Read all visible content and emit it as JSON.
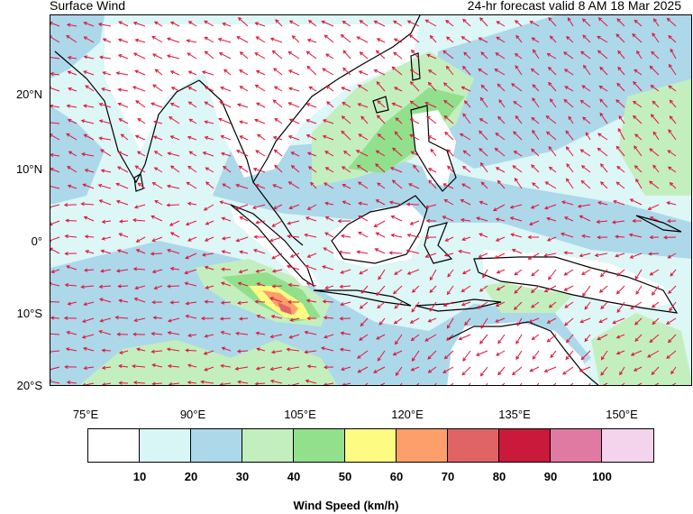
{
  "header": {
    "title_left": "Surface Wind",
    "title_right": "24-hr forecast valid 8 AM 18 Mar 2025"
  },
  "map": {
    "lat_labels": [
      "20°N",
      "10°N",
      "0°",
      "10°S",
      "20°S"
    ],
    "lon_labels": [
      "75°E",
      "90°E",
      "105°E",
      "120°E",
      "135°E",
      "150°E"
    ],
    "arrow_color": "#e0163c",
    "coast_color": "#000000"
  },
  "colorbar": {
    "title": "Wind Speed (km/h)",
    "tick_labels": [
      "10",
      "20",
      "30",
      "40",
      "50",
      "60",
      "70",
      "80",
      "90",
      "100"
    ],
    "colors": [
      "#ffffff",
      "#d8f6f6",
      "#acd8ea",
      "#c3efbe",
      "#92e08c",
      "#fefb83",
      "#fd9f6a",
      "#e06465",
      "#c91a3b",
      "#e07aa2",
      "#f4d3ec"
    ]
  }
}
